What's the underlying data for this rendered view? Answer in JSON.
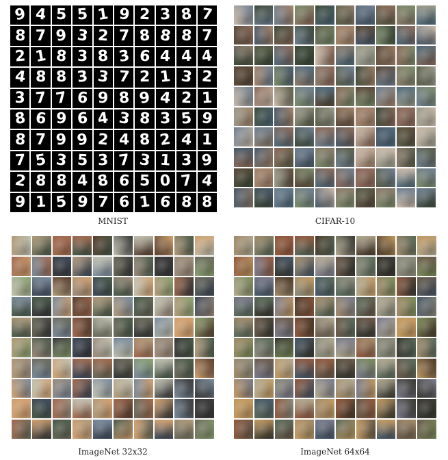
{
  "panels": [
    {
      "id": "mnist",
      "caption": "MNIST",
      "digits": [
        "9",
        "4",
        "5",
        "5",
        "1",
        "9",
        "2",
        "3",
        "8",
        "7",
        "8",
        "7",
        "9",
        "3",
        "2",
        "7",
        "8",
        "8",
        "8",
        "7",
        "2",
        "1",
        "8",
        "3",
        "8",
        "3",
        "6",
        "4",
        "4",
        "4",
        "4",
        "8",
        "8",
        "3",
        "3",
        "7",
        "2",
        "1",
        "3",
        "2",
        "3",
        "7",
        "7",
        "6",
        "9",
        "8",
        "9",
        "4",
        "2",
        "1",
        "8",
        "6",
        "9",
        "6",
        "4",
        "3",
        "8",
        "3",
        "5",
        "9",
        "8",
        "7",
        "9",
        "9",
        "2",
        "4",
        "8",
        "2",
        "4",
        "1",
        "7",
        "5",
        "3",
        "5",
        "3",
        "7",
        "3",
        "1",
        "3",
        "9",
        "2",
        "8",
        "8",
        "4",
        "8",
        "6",
        "5",
        "0",
        "7",
        "4",
        "9",
        "1",
        "5",
        "9",
        "7",
        "6",
        "1",
        "6",
        "8",
        "8"
      ]
    },
    {
      "id": "cifar",
      "caption": "CIFAR-10"
    },
    {
      "id": "imagenet32",
      "caption": "ImageNet 32x32"
    },
    {
      "id": "imagenet64",
      "caption": "ImageNet 64x64"
    }
  ],
  "palettes": {
    "cifar": [
      "#5b5f4a",
      "#8a7a6a",
      "#4f6a7a",
      "#a0826a",
      "#3e4a3a",
      "#6f7f8f",
      "#9a9a8a",
      "#5a4a3a",
      "#7a8a6a",
      "#c8b8a8",
      "#4a5a6a",
      "#8a6a5a"
    ],
    "imagenet32": [
      "#6a6a5a",
      "#9a8a7a",
      "#4a5a4a",
      "#b09a7a",
      "#3a3a3a",
      "#7a8a9a",
      "#c0c0b0",
      "#5a4030",
      "#8aa070",
      "#d0a070",
      "#404a5a",
      "#a06a50"
    ],
    "imagenet64": [
      "#6a5a4a",
      "#8a8a7a",
      "#5a6a5a",
      "#a08a6a",
      "#3a3a32",
      "#7a7a8a",
      "#b0a890",
      "#4a3a2a",
      "#7a8a5a",
      "#c09860",
      "#485868",
      "#905a40"
    ]
  }
}
